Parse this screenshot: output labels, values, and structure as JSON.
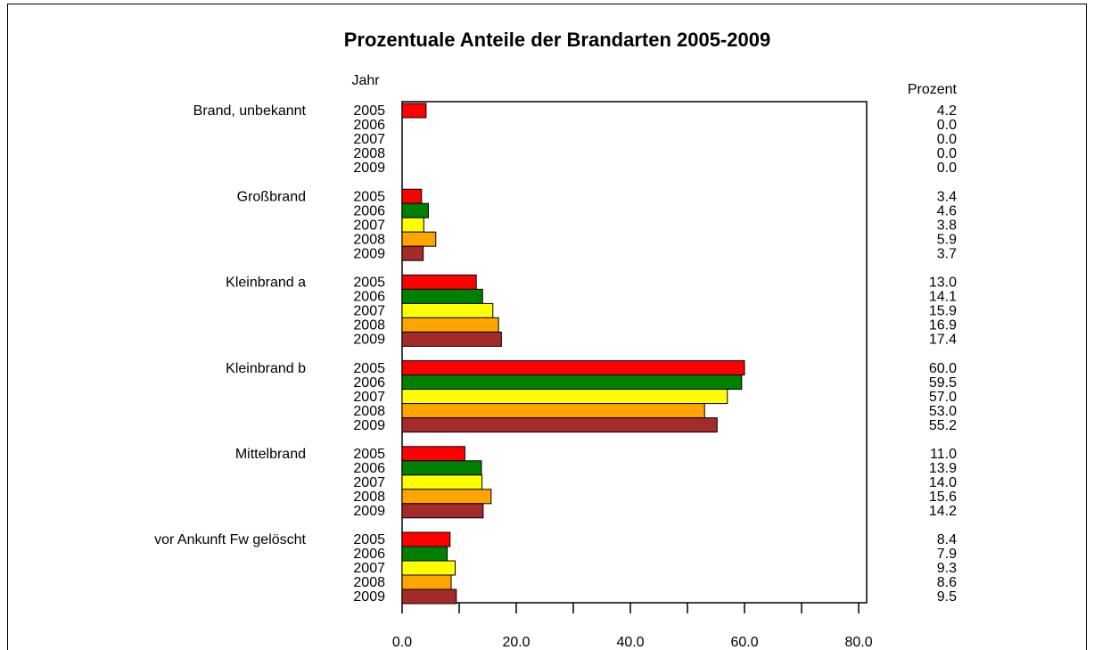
{
  "chart_data": {
    "type": "hbar",
    "title": "Prozentuale Anteile der Brandarten 2005-2009",
    "ylabel": "Jahr",
    "xlabel": "Prozent",
    "categories": [
      "Brand, unbekannt",
      "Großbrand",
      "Kleinbrand a",
      "Kleinbrand b",
      "Mittelbrand",
      "vor Ankunft Fw gelöscht"
    ],
    "series": [
      {
        "name": "2005",
        "color": "#ff0000",
        "values": [
          4.2,
          3.4,
          13.0,
          60.0,
          11.0,
          8.4
        ],
        "value_labels": [
          "4.2",
          "3.4",
          "13.0",
          "60.0",
          "11.0",
          "8.4"
        ]
      },
      {
        "name": "2006",
        "color": "#008000",
        "values": [
          0,
          4.6,
          14.1,
          59.5,
          13.9,
          7.9
        ],
        "value_labels": [
          "0.0",
          "4.6",
          "14.1",
          "59.5",
          "13.9",
          "7.9"
        ]
      },
      {
        "name": "2007",
        "color": "#ffff00",
        "values": [
          0,
          3.8,
          15.9,
          57.0,
          14.0,
          9.3
        ],
        "value_labels": [
          "0.0",
          "3.8",
          "15.9",
          "57.0",
          "14.0",
          "9.3"
        ]
      },
      {
        "name": "2008",
        "color": "#ffa500",
        "values": [
          0,
          5.9,
          16.9,
          53.0,
          15.6,
          8.6
        ],
        "value_labels": [
          "0.0",
          "5.9",
          "16.9",
          "53.0",
          "15.6",
          "8.6"
        ]
      },
      {
        "name": "2009",
        "color": "#a52a2a",
        "values": [
          0,
          3.7,
          17.4,
          55.2,
          14.2,
          9.5
        ],
        "value_labels": [
          "0.0",
          "3.7",
          "17.4",
          "55.2",
          "14.2",
          "9.5"
        ]
      }
    ],
    "xlim": [
      0,
      81.4
    ],
    "xticks": [
      {
        "value": 0,
        "label": "0.0"
      },
      {
        "value": 20,
        "label": "20.0"
      },
      {
        "value": 40,
        "label": "40.0"
      },
      {
        "value": 60,
        "label": "60.0"
      },
      {
        "value": 80,
        "label": "80.0"
      }
    ],
    "xminorticks": [
      10,
      30,
      50,
      70
    ]
  }
}
